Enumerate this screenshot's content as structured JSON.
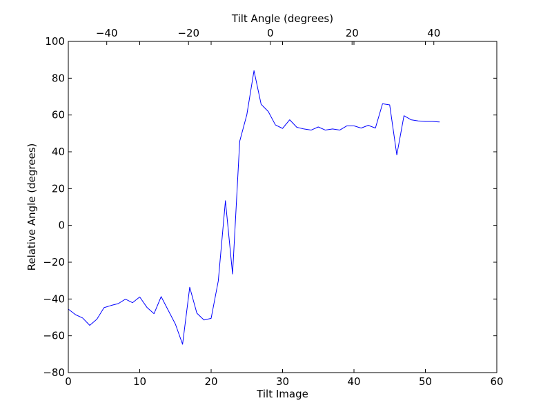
{
  "chart_data": {
    "type": "line",
    "title": "",
    "xlabel": "Tilt Image",
    "ylabel": "Relative Angle (degrees)",
    "x2label": "Tilt Angle (degrees)",
    "xlim": [
      0,
      60
    ],
    "ylim": [
      -80,
      100
    ],
    "x2lim": [
      -49.4,
      55.4
    ],
    "xticks": [
      "0",
      "10",
      "20",
      "30",
      "40",
      "50",
      "60"
    ],
    "yticks": [
      "−80",
      "−60",
      "−40",
      "−20",
      "0",
      "20",
      "40",
      "60",
      "80",
      "100"
    ],
    "x2ticks": [
      "−40",
      "−20",
      "0",
      "20",
      "40"
    ],
    "grid": false,
    "series": [
      {
        "color": "#0000ff",
        "x": [
          0,
          1,
          2,
          3,
          4,
          5,
          6,
          7,
          8,
          9,
          10,
          11,
          12,
          13,
          14,
          15,
          16,
          17,
          18,
          19,
          20,
          21,
          22,
          23,
          24,
          25,
          26,
          27,
          28,
          29,
          30,
          31,
          32,
          33,
          34,
          35,
          36,
          37,
          38,
          39,
          40,
          41,
          42,
          43,
          44,
          45,
          46,
          47,
          48,
          49,
          50,
          51,
          52
        ],
        "y": [
          -45.5,
          -48.5,
          -50.3,
          -54.3,
          -51,
          -44.7,
          -43.5,
          -42.5,
          -40.1,
          -42,
          -38.9,
          -44.5,
          -48,
          -38.7,
          -46.2,
          -53.7,
          -64.6,
          -33.6,
          -47.7,
          -51.4,
          -50.5,
          -30.2,
          13.4,
          -26.4,
          45.7,
          60.2,
          84.1,
          65.8,
          61.9,
          54.6,
          52.7,
          57.4,
          53.3,
          52.4,
          51.8,
          53.5,
          51.8,
          52.4,
          51.8,
          54.1,
          54.1,
          52.9,
          54.4,
          52.9,
          66.1,
          65.5,
          38.3,
          59.6,
          57.4,
          56.8,
          56.5,
          56.5,
          56.2
        ]
      }
    ]
  }
}
